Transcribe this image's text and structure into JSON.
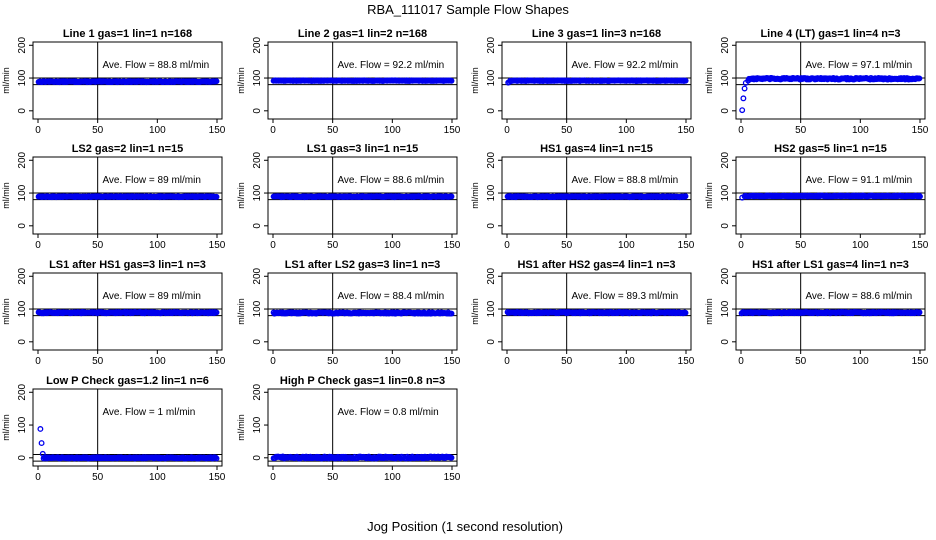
{
  "title": "RBA_111017  Sample Flow Shapes",
  "xlabel": "Jog Position (1 second resolution)",
  "chart_data": [
    {
      "type": "scatter",
      "title": "Line 1 gas=1 lin=1 n=168",
      "ylabel": "ml/min",
      "annotation": "Ave. Flow =  88.8  ml/min",
      "xlim": [
        0,
        150
      ],
      "ylim": [
        -25,
        210
      ],
      "xticks": [
        "0",
        "50",
        "100",
        "150"
      ],
      "yticks": [
        "0",
        "100",
        "200"
      ],
      "ref_lines": {
        "h": [
          100,
          80
        ],
        "v": 50
      },
      "level": 89,
      "spread": 3,
      "early": []
    },
    {
      "type": "scatter",
      "title": "Line 2 gas=1 lin=2 n=168",
      "ylabel": "ml/min",
      "annotation": "Ave. Flow =  92.2  ml/min",
      "xlim": [
        0,
        150
      ],
      "ylim": [
        -25,
        210
      ],
      "xticks": [
        "0",
        "50",
        "100",
        "150"
      ],
      "yticks": [
        "0",
        "100",
        "200"
      ],
      "ref_lines": {
        "h": [
          100,
          80
        ],
        "v": 50
      },
      "level": 92,
      "spread": 2,
      "early": []
    },
    {
      "type": "scatter",
      "title": "Line 3 gas=1 lin=3 n=168",
      "ylabel": "ml/min",
      "annotation": "Ave. Flow =  92.2  ml/min",
      "xlim": [
        0,
        150
      ],
      "ylim": [
        -25,
        210
      ],
      "xticks": [
        "0",
        "50",
        "100",
        "150"
      ],
      "yticks": [
        "0",
        "100",
        "200"
      ],
      "ref_lines": {
        "h": [
          100,
          80
        ],
        "v": 50
      },
      "level": 92,
      "spread": 2,
      "early": [
        {
          "x": 1,
          "y": 86
        },
        {
          "x": 2,
          "y": 88
        }
      ]
    },
    {
      "type": "scatter",
      "title": "Line 4 (LT) gas=1 lin=4 n=3",
      "ylabel": "ml/min",
      "annotation": "Ave. Flow =  97.1  ml/min",
      "xlim": [
        0,
        150
      ],
      "ylim": [
        -25,
        210
      ],
      "xticks": [
        "0",
        "50",
        "100",
        "150"
      ],
      "yticks": [
        "0",
        "100",
        "200"
      ],
      "ref_lines": {
        "h": [
          100,
          80
        ],
        "v": 50
      },
      "level": 98,
      "spread": 5,
      "early": [
        {
          "x": 1,
          "y": 2
        },
        {
          "x": 2,
          "y": 38
        },
        {
          "x": 3,
          "y": 68
        },
        {
          "x": 4,
          "y": 85
        },
        {
          "x": 6,
          "y": 92
        }
      ]
    },
    {
      "type": "scatter",
      "title": "LS2 gas=2 lin=1 n=15",
      "ylabel": "ml/min",
      "annotation": "Ave. Flow =  89  ml/min",
      "xlim": [
        0,
        150
      ],
      "ylim": [
        -25,
        210
      ],
      "xticks": [
        "0",
        "50",
        "100",
        "150"
      ],
      "yticks": [
        "0",
        "100",
        "200"
      ],
      "ref_lines": {
        "h": [
          100,
          80
        ],
        "v": 50
      },
      "level": 89,
      "spread": 3,
      "early": []
    },
    {
      "type": "scatter",
      "title": "LS1 gas=3 lin=1 n=15",
      "ylabel": "ml/min",
      "annotation": "Ave. Flow =  88.6  ml/min",
      "xlim": [
        0,
        150
      ],
      "ylim": [
        -25,
        210
      ],
      "xticks": [
        "0",
        "50",
        "100",
        "150"
      ],
      "yticks": [
        "0",
        "100",
        "200"
      ],
      "ref_lines": {
        "h": [
          100,
          80
        ],
        "v": 50
      },
      "level": 89,
      "spread": 3,
      "early": []
    },
    {
      "type": "scatter",
      "title": "HS1 gas=4 lin=1 n=15",
      "ylabel": "ml/min",
      "annotation": "Ave. Flow =  88.8  ml/min",
      "xlim": [
        0,
        150
      ],
      "ylim": [
        -25,
        210
      ],
      "xticks": [
        "0",
        "50",
        "100",
        "150"
      ],
      "yticks": [
        "0",
        "100",
        "200"
      ],
      "ref_lines": {
        "h": [
          100,
          80
        ],
        "v": 50
      },
      "level": 89,
      "spread": 3,
      "early": []
    },
    {
      "type": "scatter",
      "title": "HS2 gas=5 lin=1 n=15",
      "ylabel": "ml/min",
      "annotation": "Ave. Flow =  91.1  ml/min",
      "xlim": [
        0,
        150
      ],
      "ylim": [
        -25,
        210
      ],
      "xticks": [
        "0",
        "50",
        "100",
        "150"
      ],
      "yticks": [
        "0",
        "100",
        "200"
      ],
      "ref_lines": {
        "h": [
          100,
          80
        ],
        "v": 50
      },
      "level": 91,
      "spread": 3,
      "early": [
        {
          "x": 1,
          "y": 86
        },
        {
          "x": 3,
          "y": 90
        }
      ]
    },
    {
      "type": "scatter",
      "title": "LS1 after HS1 gas=3 lin=1 n=3",
      "ylabel": "ml/min",
      "annotation": "Ave. Flow =  89  ml/min",
      "xlim": [
        0,
        150
      ],
      "ylim": [
        -25,
        210
      ],
      "xticks": [
        "0",
        "50",
        "100",
        "150"
      ],
      "yticks": [
        "0",
        "100",
        "200"
      ],
      "ref_lines": {
        "h": [
          100,
          80
        ],
        "v": 50
      },
      "level": 89,
      "spread": 4,
      "early": []
    },
    {
      "type": "scatter",
      "title": "LS1 after LS2 gas=3 lin=1 n=3",
      "ylabel": "ml/min",
      "annotation": "Ave. Flow =  88.4  ml/min",
      "xlim": [
        0,
        150
      ],
      "ylim": [
        -25,
        210
      ],
      "xticks": [
        "0",
        "50",
        "100",
        "150"
      ],
      "yticks": [
        "0",
        "100",
        "200"
      ],
      "ref_lines": {
        "h": [
          100,
          80
        ],
        "v": 50
      },
      "level": 88,
      "spread": 4,
      "early": []
    },
    {
      "type": "scatter",
      "title": "HS1 after HS2 gas=4 lin=1 n=3",
      "ylabel": "ml/min",
      "annotation": "Ave. Flow =  89.3  ml/min",
      "xlim": [
        0,
        150
      ],
      "ylim": [
        -25,
        210
      ],
      "xticks": [
        "0",
        "50",
        "100",
        "150"
      ],
      "yticks": [
        "0",
        "100",
        "200"
      ],
      "ref_lines": {
        "h": [
          100,
          80
        ],
        "v": 50
      },
      "level": 89,
      "spread": 4,
      "early": []
    },
    {
      "type": "scatter",
      "title": "HS1 after LS1 gas=4 lin=1 n=3",
      "ylabel": "ml/min",
      "annotation": "Ave. Flow =  88.6  ml/min",
      "xlim": [
        0,
        150
      ],
      "ylim": [
        -25,
        210
      ],
      "xticks": [
        "0",
        "50",
        "100",
        "150"
      ],
      "yticks": [
        "0",
        "100",
        "200"
      ],
      "ref_lines": {
        "h": [
          100,
          80
        ],
        "v": 50
      },
      "level": 89,
      "spread": 4,
      "early": []
    },
    {
      "type": "scatter",
      "title": "Low P Check gas=1.2 lin=1 n=6",
      "ylabel": "ml/min",
      "annotation": "Ave. Flow =  1  ml/min",
      "xlim": [
        0,
        150
      ],
      "ylim": [
        -25,
        210
      ],
      "xticks": [
        "0",
        "50",
        "100",
        "150"
      ],
      "yticks": [
        "0",
        "100",
        "200"
      ],
      "ref_lines": {
        "h": [
          10,
          -10
        ],
        "v": 50
      },
      "level": 0,
      "spread": 4,
      "early": [
        {
          "x": 2,
          "y": 88
        },
        {
          "x": 3,
          "y": 45
        },
        {
          "x": 4,
          "y": 12
        }
      ]
    },
    {
      "type": "scatter",
      "title": "High P Check gas=1 lin=0.8 n=3",
      "ylabel": "ml/min",
      "annotation": "Ave. Flow =  0.8  ml/min",
      "xlim": [
        0,
        150
      ],
      "ylim": [
        -25,
        210
      ],
      "xticks": [
        "0",
        "50",
        "100",
        "150"
      ],
      "yticks": [
        "0",
        "100",
        "200"
      ],
      "ref_lines": {
        "h": [
          10,
          -10
        ],
        "v": 50
      },
      "level": 1,
      "spread": 6,
      "early": []
    }
  ]
}
